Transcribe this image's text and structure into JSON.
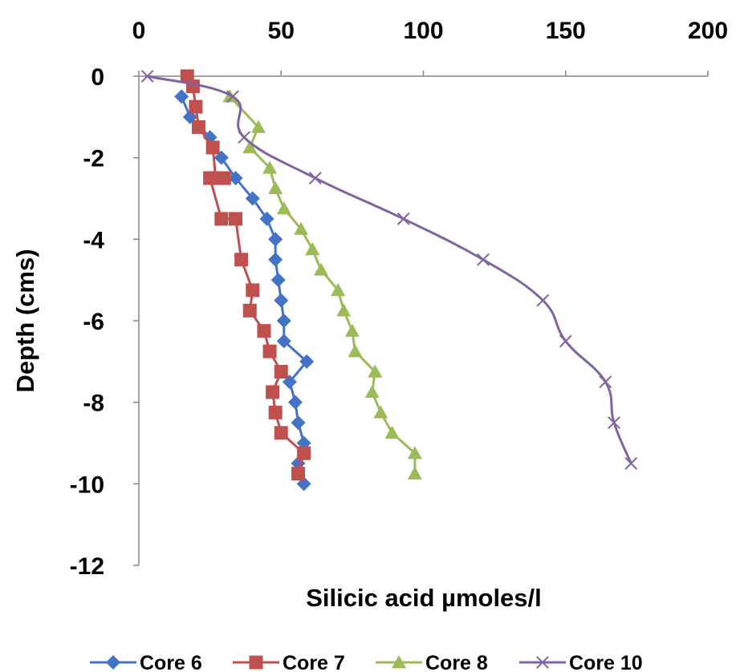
{
  "chart_data": {
    "type": "line",
    "title": "",
    "xlabel": "Silicic acid  µmoles/l",
    "ylabel": "Depth (cms)",
    "xlim": [
      0,
      200
    ],
    "ylim": [
      -12,
      0
    ],
    "x_axis_position": "top",
    "x_ticks": [
      0,
      50,
      100,
      150,
      200
    ],
    "y_ticks": [
      0,
      -2,
      -4,
      -6,
      -8,
      -10,
      -12
    ],
    "grid": false,
    "legend_position": "bottom",
    "series": [
      {
        "name": "Core 6",
        "color": "#4472C4",
        "marker": "diamond",
        "smooth": false,
        "points": [
          [
            15,
            -0.5
          ],
          [
            18,
            -1.0
          ],
          [
            25,
            -1.5
          ],
          [
            29,
            -2.0
          ],
          [
            34,
            -2.5
          ],
          [
            40,
            -3.0
          ],
          [
            45,
            -3.5
          ],
          [
            48,
            -4.0
          ],
          [
            48,
            -4.5
          ],
          [
            49,
            -5.0
          ],
          [
            50,
            -5.5
          ],
          [
            51,
            -6.0
          ],
          [
            51,
            -6.5
          ],
          [
            59,
            -7.0
          ],
          [
            53,
            -7.5
          ],
          [
            55,
            -8.0
          ],
          [
            56,
            -8.5
          ],
          [
            58,
            -9.0
          ],
          [
            56,
            -9.5
          ],
          [
            58,
            -10.0
          ]
        ]
      },
      {
        "name": "Core 7",
        "color": "#C0504D",
        "marker": "square",
        "smooth": false,
        "points": [
          [
            17,
            0.0
          ],
          [
            19,
            -0.25
          ],
          [
            20,
            -0.75
          ],
          [
            21,
            -1.25
          ],
          [
            26,
            -1.75
          ],
          [
            27,
            -2.5
          ],
          [
            30,
            -2.5
          ],
          [
            25,
            -2.5
          ],
          [
            29,
            -3.5
          ],
          [
            34,
            -3.5
          ],
          [
            36,
            -4.5
          ],
          [
            40,
            -5.25
          ],
          [
            39,
            -5.75
          ],
          [
            44,
            -6.25
          ],
          [
            46,
            -6.75
          ],
          [
            50,
            -7.25
          ],
          [
            47,
            -7.75
          ],
          [
            48,
            -8.25
          ],
          [
            50,
            -8.75
          ],
          [
            58,
            -9.25
          ],
          [
            56,
            -9.75
          ]
        ]
      },
      {
        "name": "Core 8",
        "color": "#9BBB59",
        "marker": "triangle",
        "smooth": false,
        "points": [
          [
            32,
            -0.5
          ],
          [
            42,
            -1.25
          ],
          [
            39,
            -1.75
          ],
          [
            46,
            -2.25
          ],
          [
            48,
            -2.75
          ],
          [
            51,
            -3.25
          ],
          [
            57,
            -3.75
          ],
          [
            61,
            -4.25
          ],
          [
            64,
            -4.75
          ],
          [
            70,
            -5.25
          ],
          [
            72,
            -5.75
          ],
          [
            75,
            -6.25
          ],
          [
            76,
            -6.75
          ],
          [
            83,
            -7.25
          ],
          [
            82,
            -7.75
          ],
          [
            85,
            -8.25
          ],
          [
            89,
            -8.75
          ],
          [
            97,
            -9.25
          ],
          [
            97,
            -9.75
          ]
        ]
      },
      {
        "name": "Core 10",
        "color": "#8064A2",
        "marker": "x",
        "smooth": true,
        "points": [
          [
            3,
            0.0
          ],
          [
            33,
            -0.5
          ],
          [
            37,
            -1.5
          ],
          [
            62,
            -2.5
          ],
          [
            93,
            -3.5
          ],
          [
            121,
            -4.5
          ],
          [
            142,
            -5.5
          ],
          [
            150,
            -6.5
          ],
          [
            164,
            -7.5
          ],
          [
            167,
            -8.5
          ],
          [
            173,
            -9.5
          ]
        ]
      }
    ]
  }
}
